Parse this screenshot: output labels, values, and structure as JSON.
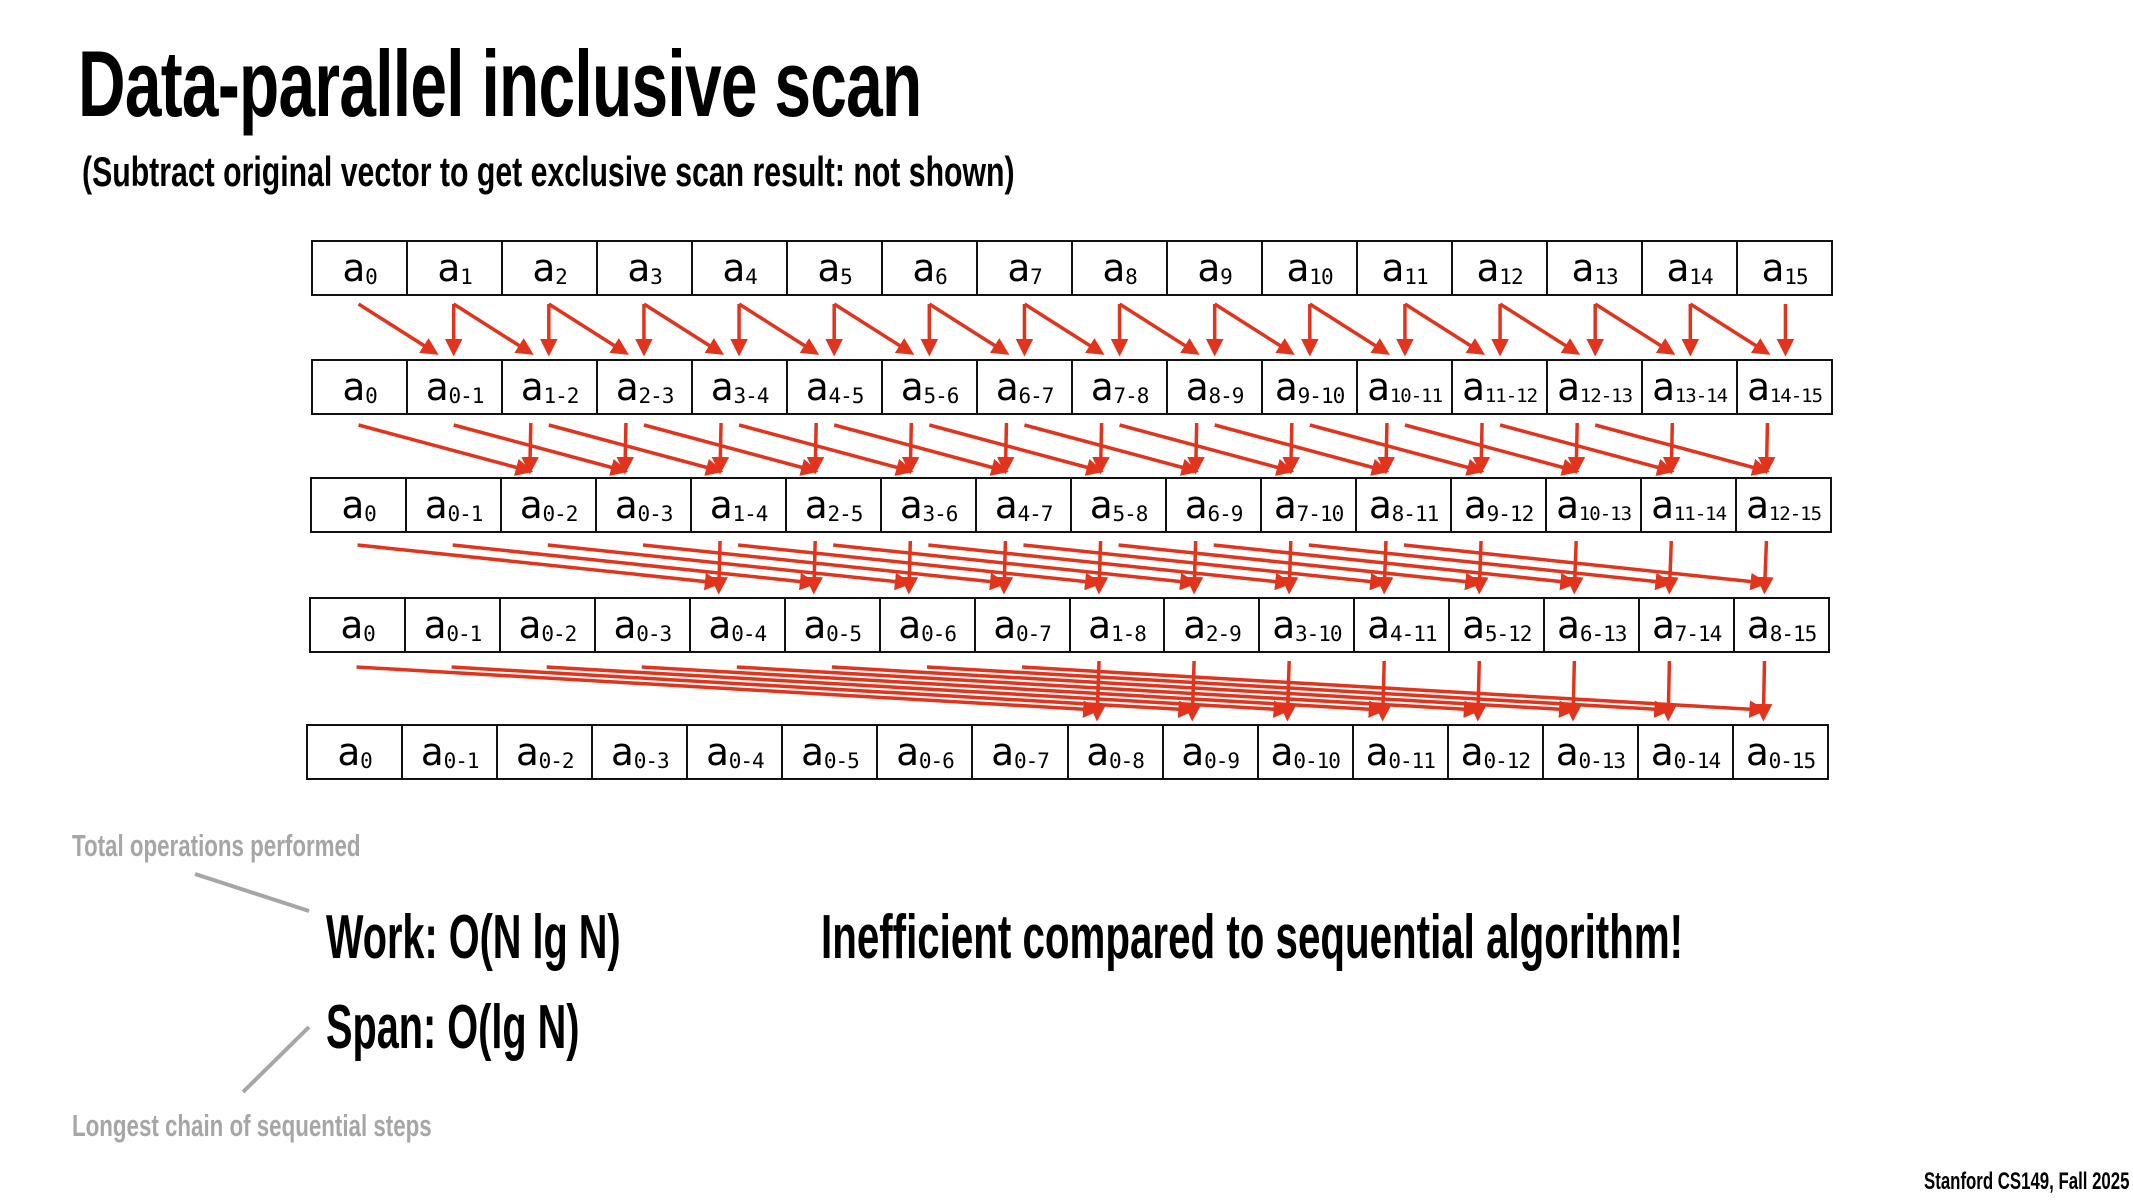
{
  "title": "Data-parallel inclusive scan",
  "subtitle": "(Subtract original vector to get exclusive scan result: not shown)",
  "colors": {
    "arrow": "#e2341d",
    "annotation": "#a6a6a6"
  },
  "diagram": {
    "base": "a",
    "rows": [
      [
        "0",
        "1",
        "2",
        "3",
        "4",
        "5",
        "6",
        "7",
        "8",
        "9",
        "10",
        "11",
        "12",
        "13",
        "14",
        "15"
      ],
      [
        "0",
        "0-1",
        "1-2",
        "2-3",
        "3-4",
        "4-5",
        "5-6",
        "6-7",
        "7-8",
        "8-9",
        "9-10",
        "10-11",
        "11-12",
        "12-13",
        "13-14",
        "14-15"
      ],
      [
        "0",
        "0-1",
        "0-2",
        "0-3",
        "1-4",
        "2-5",
        "3-6",
        "4-7",
        "5-8",
        "6-9",
        "7-10",
        "8-11",
        "9-12",
        "10-13",
        "11-14",
        "12-15"
      ],
      [
        "0",
        "0-1",
        "0-2",
        "0-3",
        "0-4",
        "0-5",
        "0-6",
        "0-7",
        "1-8",
        "2-9",
        "3-10",
        "4-11",
        "5-12",
        "6-13",
        "7-14",
        "8-15"
      ],
      [
        "0",
        "0-1",
        "0-2",
        "0-3",
        "0-4",
        "0-5",
        "0-6",
        "0-7",
        "0-8",
        "0-9",
        "0-10",
        "0-11",
        "0-12",
        "0-13",
        "0-14",
        "0-15"
      ]
    ],
    "step_offsets": [
      1,
      2,
      4,
      8
    ]
  },
  "annotations": {
    "work_label": "Total operations performed",
    "span_label": "Longest chain of sequential steps",
    "work": "Work: O(N lg N)",
    "span": "Span: O(lg N)",
    "remark": "Inefficient compared to sequential algorithm!"
  },
  "footer": "Stanford CS149, Fall 2025"
}
